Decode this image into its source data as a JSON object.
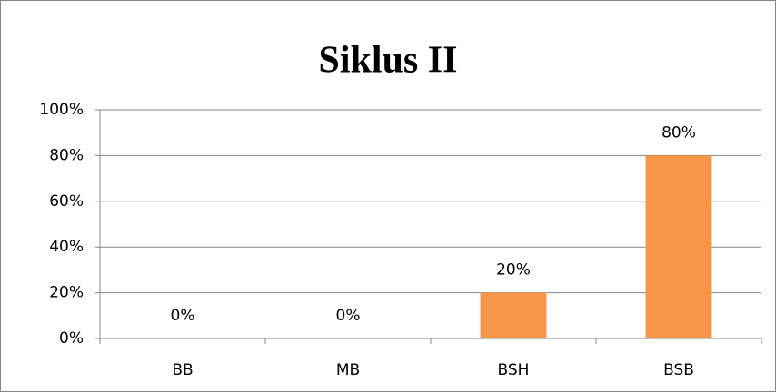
{
  "chart_data": {
    "type": "bar",
    "title": "Siklus II",
    "categories": [
      "BB",
      "MB",
      "BSH",
      "BSB"
    ],
    "values": [
      0,
      0,
      20,
      80
    ],
    "value_labels": [
      "0%",
      "0%",
      "20%",
      "80%"
    ],
    "color": "#f79646",
    "ylim": [
      0,
      100
    ],
    "yticks": [
      {
        "value": 0,
        "label": "0%"
      },
      {
        "value": 20,
        "label": "20%"
      },
      {
        "value": 40,
        "label": "40%"
      },
      {
        "value": 60,
        "label": "60%"
      },
      {
        "value": 80,
        "label": "80%"
      },
      {
        "value": 100,
        "label": "100%"
      }
    ],
    "grid": true
  }
}
